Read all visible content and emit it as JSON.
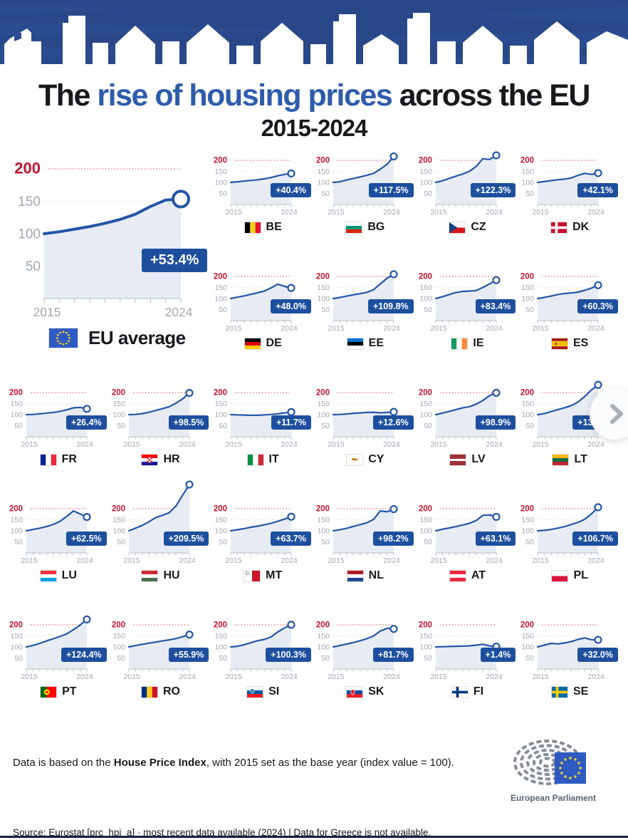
{
  "title": {
    "pre": "The ",
    "highlight": "rise of housing prices",
    "post": " across the EU",
    "subtitle": "2015-2024"
  },
  "colors": {
    "banner": "#2b4c90",
    "title_highlight": "#2e5cab",
    "line": "#2356a7",
    "area_fill": "#e7ecf4",
    "badge_bg": "#1d4f9e",
    "red_label": "#c41532",
    "red_dotted": "#e4707e",
    "gridline": "#d9dee6",
    "axis": "#c2c8d2",
    "tick_text": "#a2a8b2"
  },
  "chart_data": {
    "type": "line",
    "x": [
      2015,
      2016,
      2017,
      2018,
      2019,
      2020,
      2021,
      2022,
      2023,
      2024
    ],
    "x_tick_labels": [
      "2015",
      "2024"
    ],
    "y_tick_labels": [
      200,
      150,
      100,
      50
    ],
    "threshold": 200,
    "ylim": [
      0,
      240
    ],
    "note": "House Price Index, 2015 = 100",
    "eu": {
      "code": "EU",
      "legend_label": "EU average",
      "pct": "+53.4%",
      "values": [
        100,
        103,
        107,
        111,
        116,
        122,
        130,
        142,
        152,
        153.4
      ]
    },
    "countries": [
      {
        "code": "BE",
        "pct": "+40.4%",
        "values": [
          100,
          103,
          106,
          109,
          112,
          116,
          122,
          130,
          136,
          140.4
        ],
        "flag": {
          "t": "v",
          "c": [
            "#000000",
            "#f7d117",
            "#e8112d"
          ]
        }
      },
      {
        "code": "BG",
        "pct": "+117.5%",
        "values": [
          100,
          103,
          111,
          118,
          125,
          132,
          141,
          160,
          182,
          217.5
        ],
        "flag": {
          "t": "h",
          "c": [
            "#ffffff",
            "#00966e",
            "#d62612"
          ]
        }
      },
      {
        "code": "CZ",
        "pct": "+122.3%",
        "values": [
          100,
          107,
          118,
          128,
          138,
          150,
          172,
          207,
          204,
          222.3
        ],
        "flag": {
          "t": "cz",
          "c": [
            "#ffffff",
            "#d7141a",
            "#11457e"
          ]
        }
      },
      {
        "code": "DK",
        "pct": "+42.1%",
        "values": [
          100,
          104,
          108,
          112,
          115,
          120,
          132,
          141,
          136,
          142.1
        ],
        "flag": {
          "t": "nordic",
          "c": [
            "#c8102e",
            "#ffffff"
          ]
        }
      },
      {
        "code": "DE",
        "pct": "+48.0%",
        "values": [
          100,
          106,
          112,
          119,
          126,
          134,
          148,
          165,
          155,
          148.0
        ],
        "flag": {
          "t": "h",
          "c": [
            "#000000",
            "#dd0000",
            "#ffce00"
          ]
        }
      },
      {
        "code": "EE",
        "pct": "+109.8%",
        "values": [
          100,
          105,
          111,
          117,
          122,
          128,
          140,
          166,
          192,
          209.8
        ],
        "flag": {
          "t": "h",
          "c": [
            "#0072ce",
            "#000000",
            "#ffffff"
          ]
        }
      },
      {
        "code": "IE",
        "pct": "+83.4%",
        "values": [
          100,
          108,
          118,
          127,
          132,
          134,
          136,
          150,
          166,
          183.4
        ],
        "flag": {
          "t": "v",
          "c": [
            "#169b62",
            "#ffffff",
            "#ff883e"
          ]
        }
      },
      {
        "code": "ES",
        "pct": "+60.3%",
        "values": [
          100,
          105,
          111,
          118,
          123,
          125,
          129,
          137,
          147,
          160.3
        ],
        "flag": {
          "t": "h",
          "c": [
            "#aa151b",
            "#f1bf00",
            "#aa151b"
          ],
          "w": [
            1,
            2,
            1
          ],
          "emblem": "es"
        }
      },
      {
        "code": "FR",
        "pct": "+26.4%",
        "values": [
          100,
          101,
          104,
          107,
          110,
          115,
          122,
          131,
          133,
          126.4
        ],
        "flag": {
          "t": "v",
          "c": [
            "#002395",
            "#ffffff",
            "#ed2939"
          ]
        }
      },
      {
        "code": "HR",
        "pct": "+98.5%",
        "values": [
          100,
          101,
          105,
          111,
          119,
          127,
          136,
          152,
          172,
          198.5
        ],
        "flag": {
          "t": "h",
          "c": [
            "#ff0000",
            "#ffffff",
            "#171796"
          ],
          "emblem": "check"
        }
      },
      {
        "code": "IT",
        "pct": "+11.7%",
        "values": [
          100,
          99,
          98,
          97,
          97,
          99,
          101,
          104,
          108,
          111.7
        ],
        "flag": {
          "t": "v",
          "c": [
            "#009246",
            "#ffffff",
            "#ce2b37"
          ]
        }
      },
      {
        "code": "CY",
        "pct": "+12.6%",
        "values": [
          100,
          101,
          103,
          106,
          108,
          110,
          111,
          108,
          110,
          112.6
        ],
        "flag": {
          "t": "cy",
          "c": [
            "#ffffff",
            "#d57800"
          ]
        }
      },
      {
        "code": "LV",
        "pct": "+98.9%",
        "values": [
          100,
          107,
          115,
          123,
          131,
          136,
          147,
          164,
          186,
          198.9
        ],
        "flag": {
          "t": "h",
          "c": [
            "#9e3039",
            "#ffffff",
            "#9e3039"
          ],
          "w": [
            2,
            1,
            2
          ]
        }
      },
      {
        "code": "LT",
        "pct": "+135.0%",
        "values": [
          100,
          105,
          114,
          123,
          131,
          141,
          157,
          182,
          212,
          235.0
        ],
        "flag": {
          "t": "h",
          "c": [
            "#fdb913",
            "#006a44",
            "#c1272d"
          ]
        }
      },
      {
        "code": "LU",
        "pct": "+62.5%",
        "values": [
          100,
          106,
          112,
          119,
          129,
          143,
          165,
          190,
          176,
          162.5
        ],
        "flag": {
          "t": "h",
          "c": [
            "#ef3340",
            "#ffffff",
            "#00a2e1"
          ]
        }
      },
      {
        "code": "HU",
        "pct": "+209.5%",
        "values": [
          100,
          112,
          125,
          141,
          160,
          170,
          182,
          212,
          262,
          309.5
        ],
        "flag": {
          "t": "h",
          "c": [
            "#ce2939",
            "#ffffff",
            "#477050"
          ]
        }
      },
      {
        "code": "MT",
        "pct": "+63.7%",
        "values": [
          100,
          105,
          110,
          116,
          121,
          127,
          134,
          143,
          153,
          163.7
        ],
        "flag": {
          "t": "mt",
          "c": [
            "#ffffff",
            "#cf142b",
            "#9aa0a6"
          ]
        }
      },
      {
        "code": "NL",
        "pct": "+98.2%",
        "values": [
          100,
          105,
          111,
          120,
          128,
          136,
          152,
          190,
          186,
          198.2
        ],
        "flag": {
          "t": "h",
          "c": [
            "#ae1c28",
            "#ffffff",
            "#21468b"
          ]
        }
      },
      {
        "code": "AT",
        "pct": "+63.1%",
        "values": [
          100,
          107,
          113,
          119,
          126,
          134,
          146,
          170,
          172,
          163.1
        ],
        "flag": {
          "t": "h",
          "c": [
            "#ed2939",
            "#ffffff",
            "#ed2939"
          ]
        }
      },
      {
        "code": "PL",
        "pct": "+106.7%",
        "values": [
          100,
          102,
          106,
          112,
          119,
          128,
          138,
          152,
          176,
          206.7
        ],
        "flag": {
          "t": "h",
          "c": [
            "#ffffff",
            "#dc143c"
          ],
          "w": [
            1,
            1
          ]
        }
      },
      {
        "code": "PT",
        "pct": "+124.4%",
        "values": [
          100,
          107,
          116,
          127,
          137,
          147,
          159,
          178,
          199,
          224.4
        ],
        "flag": {
          "t": "pt",
          "c": [
            "#006600",
            "#ff0000",
            "#ffe900"
          ]
        }
      },
      {
        "code": "RO",
        "pct": "+55.9%",
        "values": [
          100,
          106,
          112,
          117,
          122,
          127,
          132,
          138,
          146,
          155.9
        ],
        "flag": {
          "t": "v",
          "c": [
            "#002b7f",
            "#fcd116",
            "#ce1126"
          ]
        }
      },
      {
        "code": "SI",
        "pct": "+100.3%",
        "values": [
          100,
          103,
          110,
          119,
          128,
          134,
          145,
          168,
          186,
          200.3
        ],
        "flag": {
          "t": "h",
          "c": [
            "#ffffff",
            "#005da4",
            "#ed1c24"
          ],
          "emblem": "shield-si"
        }
      },
      {
        "code": "SK",
        "pct": "+81.7%",
        "values": [
          100,
          106,
          113,
          120,
          128,
          137,
          150,
          172,
          184,
          181.7
        ],
        "flag": {
          "t": "h",
          "c": [
            "#ffffff",
            "#0b4ea2",
            "#ee1c25"
          ],
          "emblem": "shield-sk"
        }
      },
      {
        "code": "FI",
        "pct": "+1.4%",
        "values": [
          100,
          101,
          102,
          103,
          104,
          105,
          108,
          112,
          105,
          101.4
        ],
        "flag": {
          "t": "nordic",
          "c": [
            "#ffffff",
            "#003580"
          ]
        }
      },
      {
        "code": "SE",
        "pct": "+32.0%",
        "values": [
          100,
          108,
          116,
          114,
          118,
          124,
          134,
          141,
          133,
          132.0
        ],
        "flag": {
          "t": "nordic",
          "c": [
            "#006aa7",
            "#fecc02"
          ]
        }
      }
    ]
  },
  "carousel": {
    "next_button": "next"
  },
  "footer": {
    "note_pre": "Data is based on the ",
    "note_bold": "House Price Index",
    "note_post": ", with 2015 set as the base year (index value = 100).",
    "logo_label": "European Parliament",
    "source": "Source: Eurostat [prc_hpi_a]  ·  most recent data available (2024)  |  Data for Greece is not available."
  }
}
